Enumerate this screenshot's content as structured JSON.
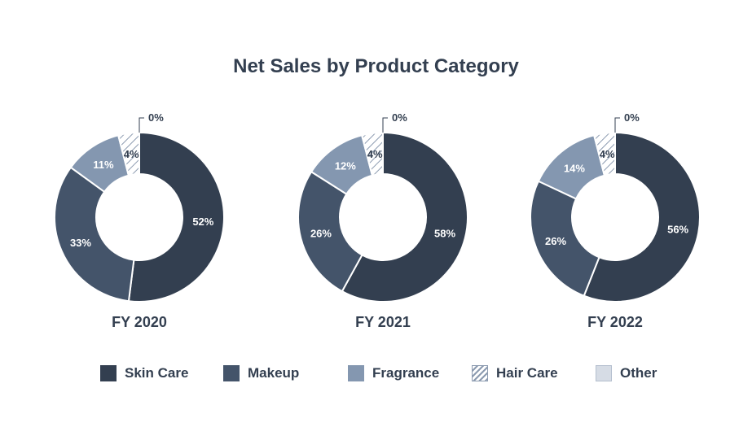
{
  "chart_data": {
    "type": "donut",
    "title": "Net Sales by Product Category",
    "categories": [
      "Skin Care",
      "Makeup",
      "Fragrance",
      "Hair Care",
      "Other"
    ],
    "colors": {
      "Skin Care": "#333f50",
      "Makeup": "#44546a",
      "Fragrance": "#8497b0",
      "Hair Care": "hatch",
      "Other": "#d6dce5"
    },
    "legend_position": "bottom",
    "charts": [
      {
        "label": "FY 2020",
        "values": [
          52,
          33,
          11,
          4,
          0
        ],
        "value_labels": [
          "52%",
          "33%",
          "11%",
          "4%",
          "0%"
        ]
      },
      {
        "label": "FY 2021",
        "values": [
          58,
          26,
          12,
          4,
          0
        ],
        "value_labels": [
          "58%",
          "26%",
          "12%",
          "4%",
          "0%"
        ]
      },
      {
        "label": "FY 2022",
        "values": [
          56,
          26,
          14,
          4,
          0
        ],
        "value_labels": [
          "56%",
          "26%",
          "14%",
          "4%",
          "0%"
        ]
      }
    ]
  }
}
